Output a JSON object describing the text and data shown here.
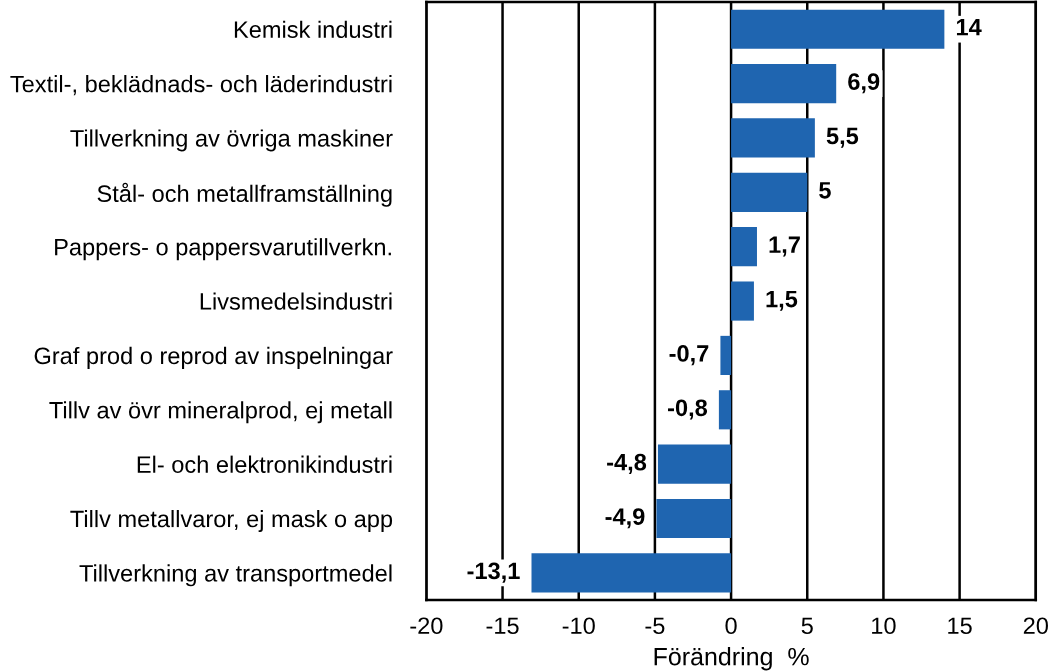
{
  "chart_data": {
    "type": "bar",
    "orientation": "horizontal",
    "xlabel": "Förändring  %",
    "categories": [
      "Kemisk industri",
      "Textil-, beklädnads- och läderindustri",
      "Tillverkning av övriga maskiner",
      "Stål- och metallframställning",
      "Pappers- o pappersvarutillverkn.",
      "Livsmedelsindustri",
      "Graf prod o reprod av inspelningar",
      "Tillv av övr mineralprod, ej metall",
      "El- och elektronikindustri",
      "Tillv metallvaror, ej mask o app",
      "Tillverkning av transportmedel"
    ],
    "values": [
      14,
      6.9,
      5.5,
      5,
      1.7,
      1.5,
      -0.7,
      -0.8,
      -4.8,
      -4.9,
      -13.1
    ],
    "value_labels": [
      "14",
      "6,9",
      "5,5",
      "5",
      "1,7",
      "1,5",
      "-0,7",
      "-0,8",
      "-4,8",
      "-4,9",
      "-13,1"
    ],
    "color": "#1f65b0",
    "xlim": [
      -20,
      20
    ],
    "xticks": [
      -20,
      -15,
      -10,
      -5,
      0,
      5,
      10,
      15,
      20
    ],
    "grid": "x",
    "legend": false
  }
}
